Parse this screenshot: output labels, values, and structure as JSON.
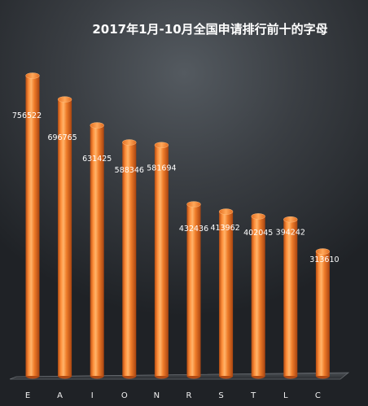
{
  "chart_data": {
    "type": "bar",
    "title": "2017年1月-10月全国申请排行前十的字母",
    "categories": [
      "E",
      "A",
      "I",
      "O",
      "N",
      "R",
      "S",
      "T",
      "L",
      "C"
    ],
    "values": [
      756522,
      696765,
      631425,
      588346,
      581694,
      432436,
      413962,
      402045,
      394242,
      313610
    ],
    "data_labels": [
      "756522",
      "696765",
      "631425",
      "588346",
      "581694",
      "432436",
      "413962",
      "402045",
      "394242",
      "313610"
    ],
    "ylim": [
      0,
      800000
    ],
    "grid": false,
    "legend": "none",
    "bar_color": "#f07d2a",
    "bar_highlight": "#ffb46a",
    "bar_shadow": "#a84410"
  }
}
